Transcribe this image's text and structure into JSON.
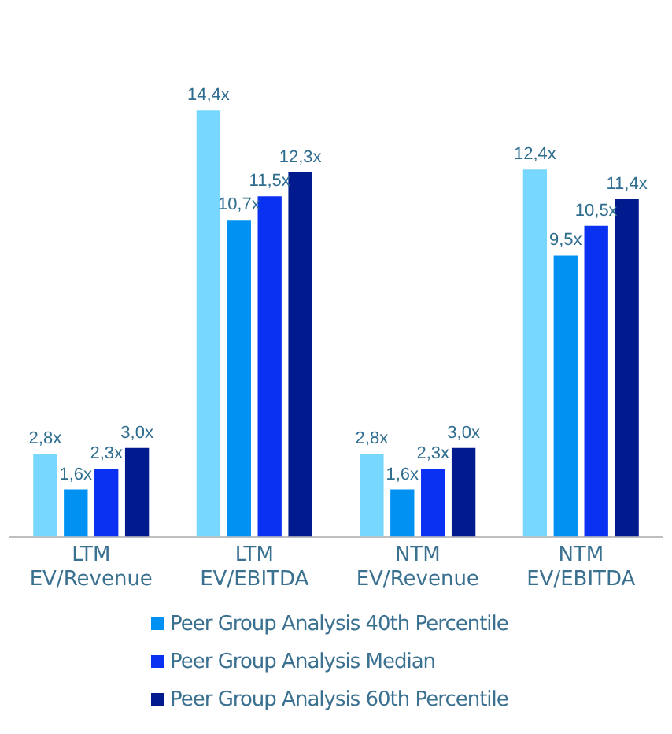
{
  "chart_data": {
    "type": "bar",
    "categories": [
      "LTM EV/Revenue",
      "LTM EV/EBITDA",
      "NTM EV/Revenue",
      "NTM EV/EBITDA"
    ],
    "series": [
      {
        "color": "#78d7ff",
        "values": [
          2.8,
          14.4,
          2.8,
          12.4
        ],
        "value_labels": [
          "2,8x",
          "14,4x",
          "2,8x",
          "12,4x"
        ]
      },
      {
        "name": "Peer Group Analysis 40th Percentile",
        "color": "#0091f2",
        "values": [
          1.6,
          10.7,
          1.6,
          9.5
        ],
        "value_labels": [
          "1,6x",
          "10,7x",
          "1,6x",
          "9,5x"
        ]
      },
      {
        "name": "Peer Group Analysis Median",
        "color": "#0a30f2",
        "values": [
          2.3,
          11.5,
          2.3,
          10.5
        ],
        "value_labels": [
          "2,3x",
          "11,5x",
          "2,3x",
          "10,5x"
        ]
      },
      {
        "name": "Peer Group Analysis 60th Percentile",
        "color": "#011b8e",
        "values": [
          3.0,
          12.3,
          3.0,
          11.4
        ],
        "value_labels": [
          "3,0x",
          "12,3x",
          "3,0x",
          "11,4x"
        ]
      }
    ],
    "legend": "bottom",
    "grid": false
  }
}
